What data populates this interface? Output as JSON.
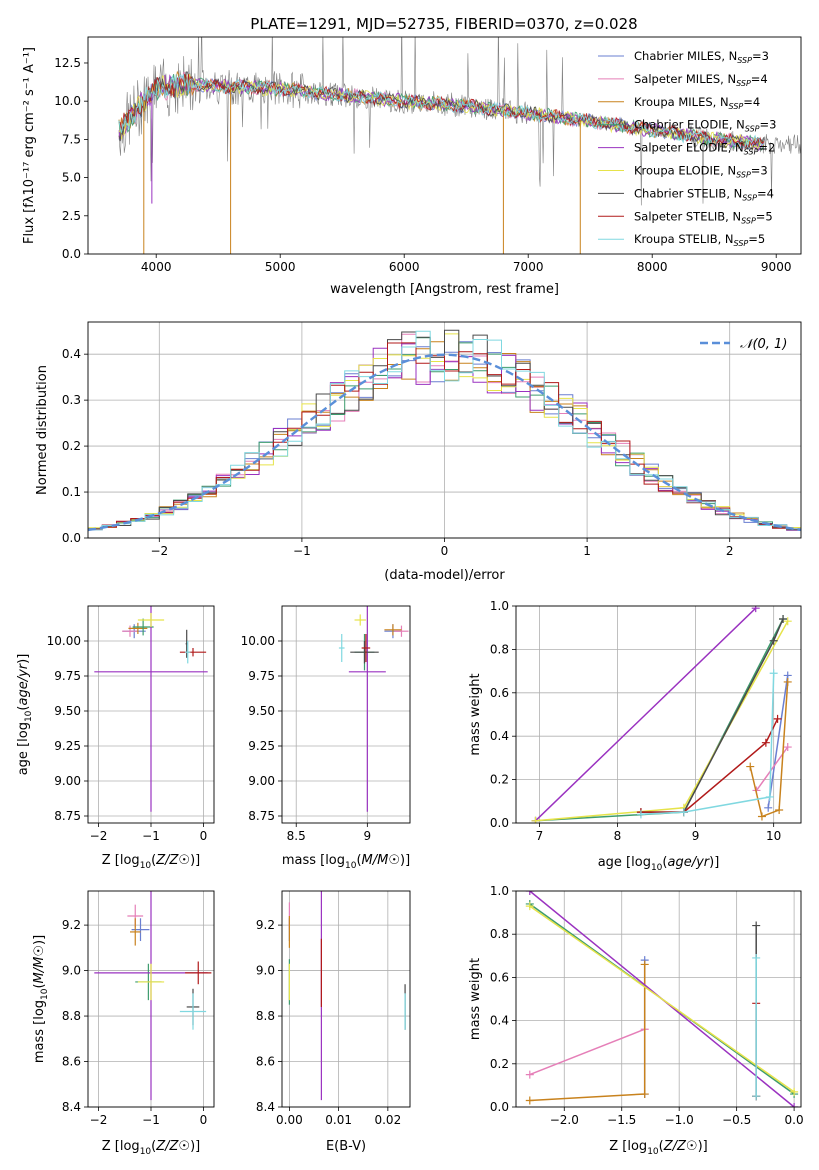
{
  "figure": {
    "title": "PLATE=1291, MJD=52735, FIBERID=0370, z=0.028"
  },
  "colors": {
    "chabrier_miles": "#6a7fd1",
    "salpeter_miles": "#e57fb8",
    "kroupa_miles": "#c8821d",
    "chabrier_elodie": "#3d9c6e",
    "salpeter_elodie": "#9a32c0",
    "kroupa_elodie": "#e6e34a",
    "chabrier_stelib": "#4a4a4a",
    "salpeter_stelib": "#b11a1a",
    "kroupa_stelib": "#80d8e0",
    "data": "#808080",
    "normal": "#5a8fd9",
    "grid": "#b0b0b0"
  },
  "chart_data": [
    {
      "id": "spectrum",
      "type": "line",
      "title": "PLATE=1291, MJD=52735, FIBERID=0370, z=0.028",
      "xlabel": "wavelength [Angstrom, rest frame]",
      "ylabel": "Flux [fλ10⁻¹⁷ erg cm⁻² s⁻¹ A⁻¹]",
      "xlim": [
        3450,
        9200
      ],
      "ylim": [
        0,
        14.2
      ],
      "xticks": [
        4000,
        5000,
        6000,
        7000,
        8000,
        9000
      ],
      "yticks": [
        0.0,
        2.5,
        5.0,
        7.5,
        10.0,
        12.5
      ],
      "grid": false,
      "legend_position": "top-right",
      "legend": [
        "Chabrier MILES, N_SSP=3",
        "Salpeter MILES, N_SSP=4",
        "Kroupa MILES, N_SSP=4",
        "Chabrier ELODIE, N_SSP=3",
        "Salpeter ELODIE, N_SSP=2",
        "Kroupa ELODIE, N_SSP=3",
        "Chabrier STELIB, N_SSP=4",
        "Salpeter STELIB, N_SSP=5",
        "Kroupa STELIB, N_SSP=5"
      ],
      "legend_text": [
        {
          "a": "Chabrier MILES, N",
          "b": "=3"
        },
        {
          "a": "Salpeter MILES, N",
          "b": "=4"
        },
        {
          "a": "Kroupa MILES, N",
          "b": "=4"
        },
        {
          "a": "Chabrier ELODIE, N",
          "b": "=3"
        },
        {
          "a": "Salpeter ELODIE, N",
          "b": "=2"
        },
        {
          "a": "Kroupa ELODIE, N",
          "b": "=3"
        },
        {
          "a": "Chabrier STELIB, N",
          "b": "=4"
        },
        {
          "a": "Salpeter STELIB, N",
          "b": "=5"
        },
        {
          "a": "Kroupa STELIB, N",
          "b": "=5"
        }
      ],
      "legend_sub": "SSP",
      "continuum": {
        "x": [
          3700,
          3900,
          4000,
          4200,
          4500,
          5000,
          5500,
          6000,
          6500,
          7000,
          7500,
          8000,
          8500,
          8900
        ],
        "y": [
          8.0,
          10.0,
          10.8,
          11.1,
          11.0,
          10.8,
          10.4,
          10.0,
          9.7,
          9.2,
          8.7,
          8.1,
          7.5,
          7.2
        ]
      },
      "data_range_x": [
        3700,
        9200
      ],
      "model_range_x": [
        3700,
        8900
      ],
      "drops": [
        {
          "x": 3900,
          "y": 0.0
        },
        {
          "x": 4600,
          "y": 0.0
        },
        {
          "x": 6800,
          "y": 0.0
        },
        {
          "x": 7420,
          "y": 0.0
        },
        {
          "x": 3965,
          "y": 3.3
        }
      ]
    },
    {
      "id": "residuals",
      "type": "histogram",
      "xlabel": "(data-model)/error",
      "ylabel": "Normed distribution",
      "xlim": [
        -2.5,
        2.5
      ],
      "ylim": [
        0,
        0.47
      ],
      "xticks": [
        -2,
        -1,
        0,
        1,
        2
      ],
      "yticks": [
        0.0,
        0.1,
        0.2,
        0.3,
        0.4
      ],
      "grid": true,
      "legend_position": "top-right",
      "legend": [
        "𝒩(0, 1)"
      ],
      "bin_width": 0.1
    },
    {
      "id": "age_vs_Z",
      "type": "errorbar",
      "xlabel": "Z [log10(Z/Z☉)]",
      "ylabel": "age  [log10(age/yr)]",
      "xlim": [
        -2.2,
        0.2
      ],
      "ylim": [
        8.7,
        10.25
      ],
      "xticks": [
        -2,
        -1,
        0
      ],
      "yticks": [
        8.75,
        9.0,
        9.25,
        9.5,
        9.75,
        10.0
      ],
      "grid": true,
      "points": [
        {
          "model": "chabrier_miles",
          "x": -1.32,
          "y": 10.07,
          "xerr": 0.22,
          "yerr": 0.05
        },
        {
          "model": "salpeter_miles",
          "x": -1.4,
          "y": 10.07,
          "xerr": 0.15,
          "yerr": 0.04
        },
        {
          "model": "kroupa_miles",
          "x": -1.25,
          "y": 10.09,
          "xerr": 0.18,
          "yerr": 0.04
        },
        {
          "model": "chabrier_elodie",
          "x": -1.15,
          "y": 10.1,
          "xerr": 0.2,
          "yerr": 0.06
        },
        {
          "model": "salpeter_elodie",
          "x": -1.0,
          "y": 9.78,
          "xerr": 1.08,
          "yerr": 1.0
        },
        {
          "model": "kroupa_elodie",
          "x": -1.0,
          "y": 10.15,
          "xerr": 0.25,
          "yerr": 0.05
        },
        {
          "model": "chabrier_stelib",
          "x": -0.32,
          "y": 9.98,
          "xerr": 0.02,
          "yerr": 0.1
        },
        {
          "model": "salpeter_stelib",
          "x": -0.2,
          "y": 9.92,
          "xerr": 0.25,
          "yerr": 0.03
        },
        {
          "model": "kroupa_stelib",
          "x": -0.3,
          "y": 9.92,
          "xerr": 0.05,
          "yerr": 0.08
        }
      ]
    },
    {
      "id": "age_vs_mass",
      "type": "errorbar",
      "xlabel": "mass [log10(M/M☉)]",
      "ylabel": "",
      "xlim": [
        8.4,
        9.3
      ],
      "ylim": [
        8.7,
        10.25
      ],
      "xticks": [
        8.5,
        9.0
      ],
      "yticks": [
        8.75,
        9.0,
        9.25,
        9.5,
        9.75,
        10.0
      ],
      "grid": true,
      "points": [
        {
          "model": "chabrier_miles",
          "x": 9.18,
          "y": 10.07,
          "xerr": 0.06,
          "yerr": 0.05
        },
        {
          "model": "salpeter_miles",
          "x": 9.24,
          "y": 10.07,
          "xerr": 0.05,
          "yerr": 0.04
        },
        {
          "model": "kroupa_miles",
          "x": 9.18,
          "y": 10.08,
          "xerr": 0.06,
          "yerr": 0.04
        },
        {
          "model": "chabrier_elodie",
          "x": 8.98,
          "y": 9.92,
          "xerr": 0.07,
          "yerr": 0.13
        },
        {
          "model": "salpeter_elodie",
          "x": 9.0,
          "y": 9.78,
          "xerr": 0.13,
          "yerr": 1.0
        },
        {
          "model": "kroupa_elodie",
          "x": 8.95,
          "y": 10.15,
          "xerr": 0.04,
          "yerr": 0.04
        },
        {
          "model": "chabrier_stelib",
          "x": 8.98,
          "y": 9.92,
          "xerr": 0.1,
          "yerr": 0.08
        },
        {
          "model": "salpeter_stelib",
          "x": 8.99,
          "y": 9.95,
          "xerr": 0.03,
          "yerr": 0.1
        },
        {
          "model": "kroupa_stelib",
          "x": 8.82,
          "y": 9.95,
          "xerr": 0.02,
          "yerr": 0.1
        }
      ]
    },
    {
      "id": "massweight_vs_age",
      "type": "line",
      "xlabel": "age  [log10(age/yr)]",
      "ylabel": "mass weight",
      "xlim": [
        6.7,
        10.35
      ],
      "ylim": [
        0,
        1.0
      ],
      "xticks": [
        7,
        8,
        9,
        10
      ],
      "yticks": [
        0.0,
        0.2,
        0.4,
        0.6,
        0.8,
        1.0
      ],
      "grid": true,
      "series": [
        {
          "model": "chabrier_miles",
          "x": [
            9.93,
            10.18
          ],
          "y": [
            0.07,
            0.68
          ]
        },
        {
          "model": "salpeter_miles",
          "x": [
            9.78,
            10.18
          ],
          "y": [
            0.15,
            0.35
          ]
        },
        {
          "model": "kroupa_miles",
          "x": [
            9.7,
            9.85,
            10.07,
            10.18
          ],
          "y": [
            0.26,
            0.03,
            0.06,
            0.65
          ]
        },
        {
          "model": "chabrier_elodie",
          "x": [
            6.95,
            8.85,
            10.12
          ],
          "y": [
            0.01,
            0.05,
            0.94
          ]
        },
        {
          "model": "salpeter_elodie",
          "x": [
            6.95,
            9.77
          ],
          "y": [
            0.01,
            0.99
          ]
        },
        {
          "model": "kroupa_elodie",
          "x": [
            6.95,
            8.85,
            10.18
          ],
          "y": [
            0.01,
            0.07,
            0.93
          ]
        },
        {
          "model": "chabrier_stelib",
          "x": [
            8.3,
            8.85,
            10.0,
            10.12
          ],
          "y": [
            0.05,
            0.05,
            0.84,
            0.94
          ]
        },
        {
          "model": "salpeter_stelib",
          "x": [
            8.3,
            8.85,
            9.9,
            10.05
          ],
          "y": [
            0.05,
            0.05,
            0.37,
            0.48
          ]
        },
        {
          "model": "kroupa_stelib",
          "x": [
            8.3,
            8.85,
            9.95,
            10.0
          ],
          "y": [
            0.04,
            0.05,
            0.12,
            0.69
          ]
        }
      ]
    },
    {
      "id": "mass_vs_Z",
      "type": "errorbar",
      "xlabel": "Z [log10(Z/Z☉)]",
      "ylabel": "mass [log10(M/M☉)]",
      "xlim": [
        -2.2,
        0.2
      ],
      "ylim": [
        8.4,
        9.35
      ],
      "xticks": [
        -2,
        -1,
        0
      ],
      "yticks": [
        8.4,
        8.6,
        8.8,
        9.0,
        9.2
      ],
      "grid": true,
      "points": [
        {
          "model": "chabrier_miles",
          "x": -1.2,
          "y": 9.18,
          "xerr": 0.17,
          "yerr": 0.05
        },
        {
          "model": "salpeter_miles",
          "x": -1.3,
          "y": 9.24,
          "xerr": 0.15,
          "yerr": 0.05
        },
        {
          "model": "kroupa_miles",
          "x": -1.3,
          "y": 9.17,
          "xerr": 0.1,
          "yerr": 0.06
        },
        {
          "model": "chabrier_elodie",
          "x": -1.05,
          "y": 8.95,
          "xerr": 0.25,
          "yerr": 0.08
        },
        {
          "model": "salpeter_elodie",
          "x": -1.0,
          "y": 8.99,
          "xerr": 1.08,
          "yerr": 0.56
        },
        {
          "model": "kroupa_elodie",
          "x": -1.0,
          "y": 8.95,
          "xerr": 0.25,
          "yerr": 0.08
        },
        {
          "model": "chabrier_stelib",
          "x": -0.2,
          "y": 8.84,
          "xerr": 0.12,
          "yerr": 0.08
        },
        {
          "model": "salpeter_stelib",
          "x": -0.1,
          "y": 8.99,
          "xerr": 0.25,
          "yerr": 0.05
        },
        {
          "model": "kroupa_stelib",
          "x": -0.2,
          "y": 8.82,
          "xerr": 0.25,
          "yerr": 0.08
        }
      ]
    },
    {
      "id": "mass_vs_ebv",
      "type": "errorbar",
      "xlabel": "E(B-V)",
      "ylabel": "",
      "xlim": [
        -0.0015,
        0.0245
      ],
      "ylim": [
        8.4,
        9.35
      ],
      "xticks": [
        0.0,
        0.01,
        0.02
      ],
      "yticks": [
        8.4,
        8.6,
        8.8,
        9.0,
        9.2
      ],
      "grid": true,
      "points": [
        {
          "model": "chabrier_miles",
          "x": 0.0,
          "y": 9.18,
          "xerr": 0.0,
          "yerr": 0.05
        },
        {
          "model": "salpeter_miles",
          "x": 0.0,
          "y": 9.24,
          "xerr": 0.0,
          "yerr": 0.06
        },
        {
          "model": "kroupa_miles",
          "x": 0.0,
          "y": 9.17,
          "xerr": 0.0,
          "yerr": 0.07
        },
        {
          "model": "chabrier_elodie",
          "x": 0.0,
          "y": 8.95,
          "xerr": 0.0,
          "yerr": 0.1
        },
        {
          "model": "salpeter_elodie",
          "x": 0.0065,
          "y": 8.99,
          "xerr": 0.0,
          "yerr": 0.56
        },
        {
          "model": "kroupa_elodie",
          "x": 0.0,
          "y": 8.95,
          "xerr": 0.0,
          "yerr": 0.08
        },
        {
          "model": "chabrier_stelib",
          "x": 0.0235,
          "y": 8.84,
          "xerr": 0.0,
          "yerr": 0.1
        },
        {
          "model": "salpeter_stelib",
          "x": 0.0065,
          "y": 8.99,
          "xerr": 0.0,
          "yerr": 0.15
        },
        {
          "model": "kroupa_stelib",
          "x": 0.0235,
          "y": 8.82,
          "xerr": 0.0,
          "yerr": 0.08
        }
      ]
    },
    {
      "id": "massweight_vs_Z",
      "type": "line",
      "xlabel": "Z [log10(Z/Z☉)]",
      "ylabel": "mass weight",
      "xlim": [
        -2.42,
        0.06
      ],
      "ylim": [
        0,
        1.0
      ],
      "xticks": [
        -2.0,
        -1.5,
        -1.0,
        -0.5,
        0.0
      ],
      "yticks": [
        0.0,
        0.2,
        0.4,
        0.6,
        0.8,
        1.0
      ],
      "grid": true,
      "series": [
        {
          "model": "chabrier_miles",
          "x": [
            -1.3,
            -1.3
          ],
          "y": [
            0.06,
            0.68
          ]
        },
        {
          "model": "salpeter_miles",
          "x": [
            -2.3,
            -1.3
          ],
          "y": [
            0.15,
            0.36
          ]
        },
        {
          "model": "kroupa_miles",
          "x": [
            -2.3,
            -1.3,
            -1.3
          ],
          "y": [
            0.03,
            0.06,
            0.66
          ]
        },
        {
          "model": "chabrier_elodie",
          "x": [
            -2.3,
            0.0
          ],
          "y": [
            0.94,
            0.06
          ]
        },
        {
          "model": "salpeter_elodie",
          "x": [
            -2.3,
            0.0
          ],
          "y": [
            1.0,
            0.0
          ]
        },
        {
          "model": "kroupa_elodie",
          "x": [
            -2.3,
            0.0
          ],
          "y": [
            0.93,
            0.07
          ]
        },
        {
          "model": "chabrier_stelib",
          "x": [
            -0.33,
            -0.33
          ],
          "y": [
            0.05,
            0.84
          ]
        },
        {
          "model": "salpeter_stelib",
          "x": [
            -0.33,
            -0.33
          ],
          "y": [
            0.05,
            0.48
          ]
        },
        {
          "model": "kroupa_stelib",
          "x": [
            -0.33,
            -0.33
          ],
          "y": [
            0.05,
            0.69
          ]
        }
      ]
    }
  ]
}
